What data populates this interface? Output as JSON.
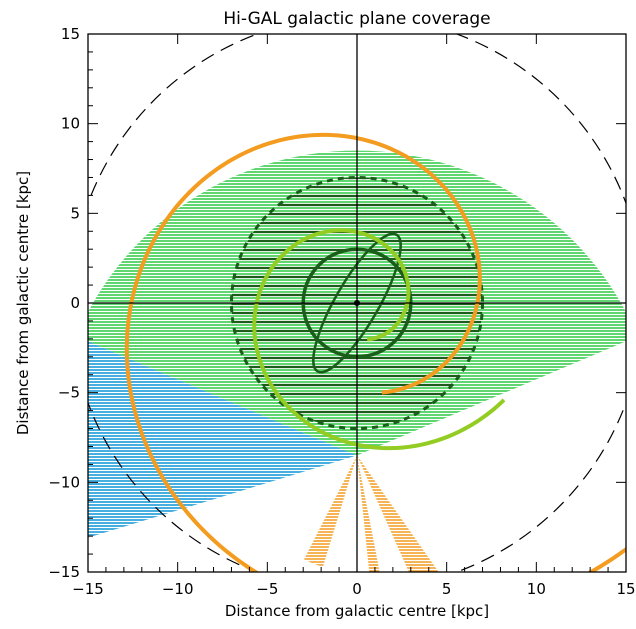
{
  "chart_data": {
    "type": "diagram-plot",
    "title": "Hi-GAL galactic plane coverage",
    "xlabel": "Distance from galactic centre [kpc]",
    "ylabel": "Distance from galactic centre [kpc]",
    "xlim": [
      -15,
      15
    ],
    "ylim": [
      -15,
      15
    ],
    "xticks": [
      -15,
      -10,
      -5,
      0,
      5,
      10,
      15
    ],
    "yticks": [
      -15,
      -10,
      -5,
      0,
      5,
      10,
      15
    ],
    "sun": [
      0,
      -8.5
    ],
    "green_sector": {
      "r_max": 17,
      "theta_from_deg": 23,
      "theta_to_deg": 157,
      "color": "#5fd66f"
    },
    "blue_sector": {
      "r_max": 19,
      "theta_from_deg": 157,
      "theta_to_deg": 197,
      "color": "#47aee0"
    },
    "orange_wedges": [
      {
        "theta_from_deg": 243,
        "theta_to_deg": 253,
        "r_max": 6.5
      },
      {
        "theta_from_deg": 294,
        "theta_to_deg": 305,
        "r_max": 8.0
      },
      {
        "theta_from_deg": 276,
        "theta_to_deg": 281,
        "r_max": 8.0
      }
    ],
    "circles": [
      {
        "r": 16.0,
        "style": "dashed",
        "color": "#000000"
      },
      {
        "r": 7.0,
        "style": "dashed-thick",
        "color": "#1a5e1a"
      },
      {
        "r": 3.0,
        "style": "solid-thick",
        "color": "#1a5e1a"
      }
    ],
    "bar_ellipse": {
      "a": 4.4,
      "b": 1.2,
      "angle_deg": 60,
      "color": "#1a5e1a"
    },
    "spirals": [
      {
        "color": "#f39c1f",
        "a": 9.7,
        "k": 0.2
      },
      {
        "color": "#93cc22",
        "a": 4.2,
        "k": 0.22
      }
    ],
    "colors": {
      "green": "#5fd66f",
      "blue": "#47aee0",
      "orange": "#f39c1f",
      "yellowgreen": "#93cc22",
      "darkgreen": "#1a5e1a"
    }
  }
}
